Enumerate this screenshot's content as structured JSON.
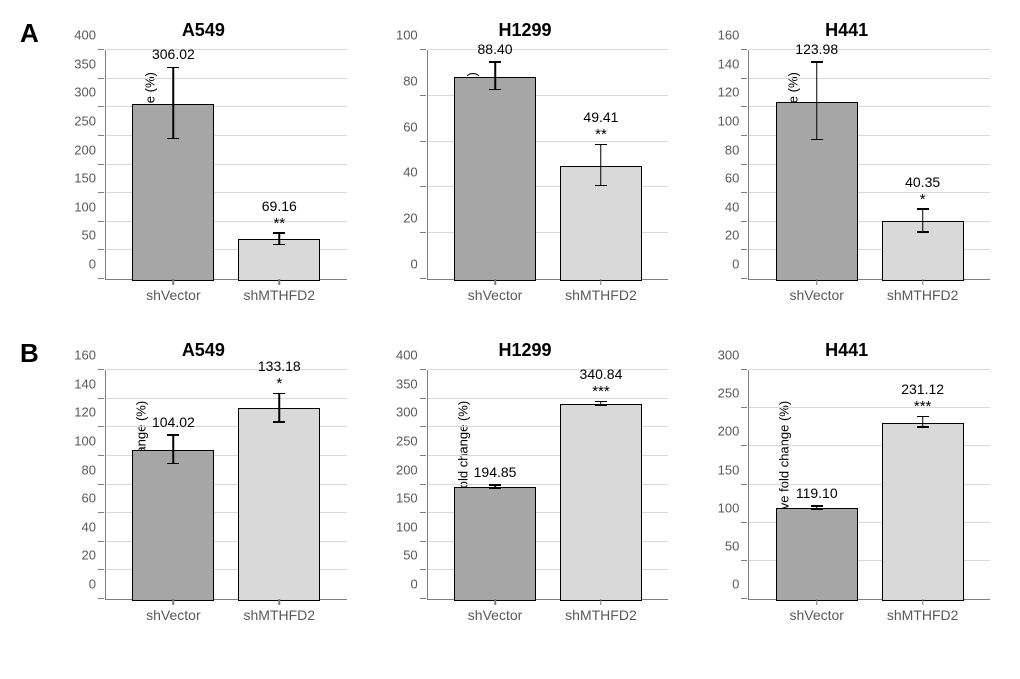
{
  "panels": [
    {
      "letter": "A",
      "y_axis_label": "NADPH relative fold change (%)",
      "charts": [
        {
          "title": "A549",
          "y_max": 400,
          "y_step": 50,
          "categories": [
            "shVector",
            "shMTHFD2"
          ],
          "values": [
            306.02,
            69.16
          ],
          "errors": [
            62,
            10
          ],
          "sig": [
            "",
            "**"
          ],
          "bar_colors": [
            "#a6a6a6",
            "#d9d9d9"
          ]
        },
        {
          "title": "H1299",
          "y_max": 100,
          "y_step": 20,
          "categories": [
            "shVector",
            "shMTHFD2"
          ],
          "values": [
            88.4,
            49.41
          ],
          "errors": [
            6,
            9
          ],
          "sig": [
            "",
            "**"
          ],
          "bar_colors": [
            "#a6a6a6",
            "#d9d9d9"
          ]
        },
        {
          "title": "H441",
          "y_max": 160,
          "y_step": 20,
          "categories": [
            "shVector",
            "shMTHFD2"
          ],
          "values": [
            123.98,
            40.35
          ],
          "errors": [
            27,
            8
          ],
          "sig": [
            "",
            "*"
          ],
          "bar_colors": [
            "#a6a6a6",
            "#d9d9d9"
          ]
        }
      ]
    },
    {
      "letter": "B",
      "y_axis_label": "ROS relative fold change (%)",
      "charts": [
        {
          "title": "A549",
          "y_max": 160,
          "y_step": 20,
          "categories": [
            "shVector",
            "shMTHFD2"
          ],
          "values": [
            104.02,
            133.18
          ],
          "errors": [
            10,
            10
          ],
          "sig": [
            "",
            "*"
          ],
          "bar_colors": [
            "#a6a6a6",
            "#d9d9d9"
          ]
        },
        {
          "title": "H1299",
          "y_max": 400,
          "y_step": 50,
          "categories": [
            "shVector",
            "shMTHFD2"
          ],
          "values": [
            194.85,
            340.84
          ],
          "errors": [
            3,
            3
          ],
          "sig": [
            "",
            "***"
          ],
          "bar_colors": [
            "#a6a6a6",
            "#d9d9d9"
          ]
        },
        {
          "title": "H441",
          "y_max": 300,
          "y_step": 50,
          "categories": [
            "shVector",
            "shMTHFD2"
          ],
          "values": [
            119.1,
            231.12
          ],
          "errors": [
            2,
            7
          ],
          "sig": [
            "",
            "***"
          ],
          "bar_colors": [
            "#a6a6a6",
            "#d9d9d9"
          ]
        }
      ]
    }
  ],
  "style": {
    "grid_color": "#d9d9d9",
    "axis_color": "#7f7f7f",
    "background": "#ffffff",
    "bar_border": "#000000",
    "label_color": "#000000"
  }
}
